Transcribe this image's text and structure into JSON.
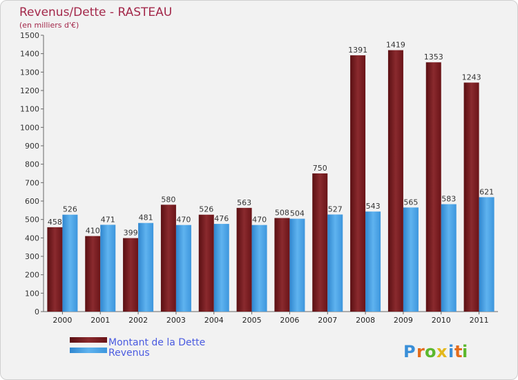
{
  "chart_data": {
    "type": "bar",
    "title": "Revenus/Dette - RASTEAU",
    "subtitle": "(en milliers d'€)",
    "categories": [
      "2000",
      "2001",
      "2002",
      "2003",
      "2004",
      "2005",
      "2006",
      "2007",
      "2008",
      "2009",
      "2010",
      "2011"
    ],
    "series": [
      {
        "name": "Montant de la Dette",
        "color": "#7a1a1e",
        "values": [
          458,
          410,
          399,
          580,
          526,
          563,
          508,
          750,
          1391,
          1419,
          1353,
          1243
        ]
      },
      {
        "name": "Revenus",
        "color": "#4aa3e6",
        "values": [
          526,
          471,
          481,
          470,
          476,
          470,
          504,
          527,
          543,
          565,
          583,
          621
        ]
      }
    ],
    "ylim": [
      0,
      1500
    ],
    "yticks": [
      0,
      100,
      200,
      300,
      400,
      500,
      600,
      700,
      800,
      900,
      1000,
      1100,
      1200,
      1300,
      1400,
      1500
    ],
    "grid": false,
    "legend_position": "bottom-left"
  },
  "logo": {
    "letters": [
      "P",
      "r",
      "o",
      "x",
      "i",
      "t",
      "i"
    ],
    "colors": [
      "#3a8fd8",
      "#e36c1c",
      "#5cb82e",
      "#e3b81c",
      "#3a8fd8",
      "#e36c1c",
      "#5cb82e"
    ]
  }
}
